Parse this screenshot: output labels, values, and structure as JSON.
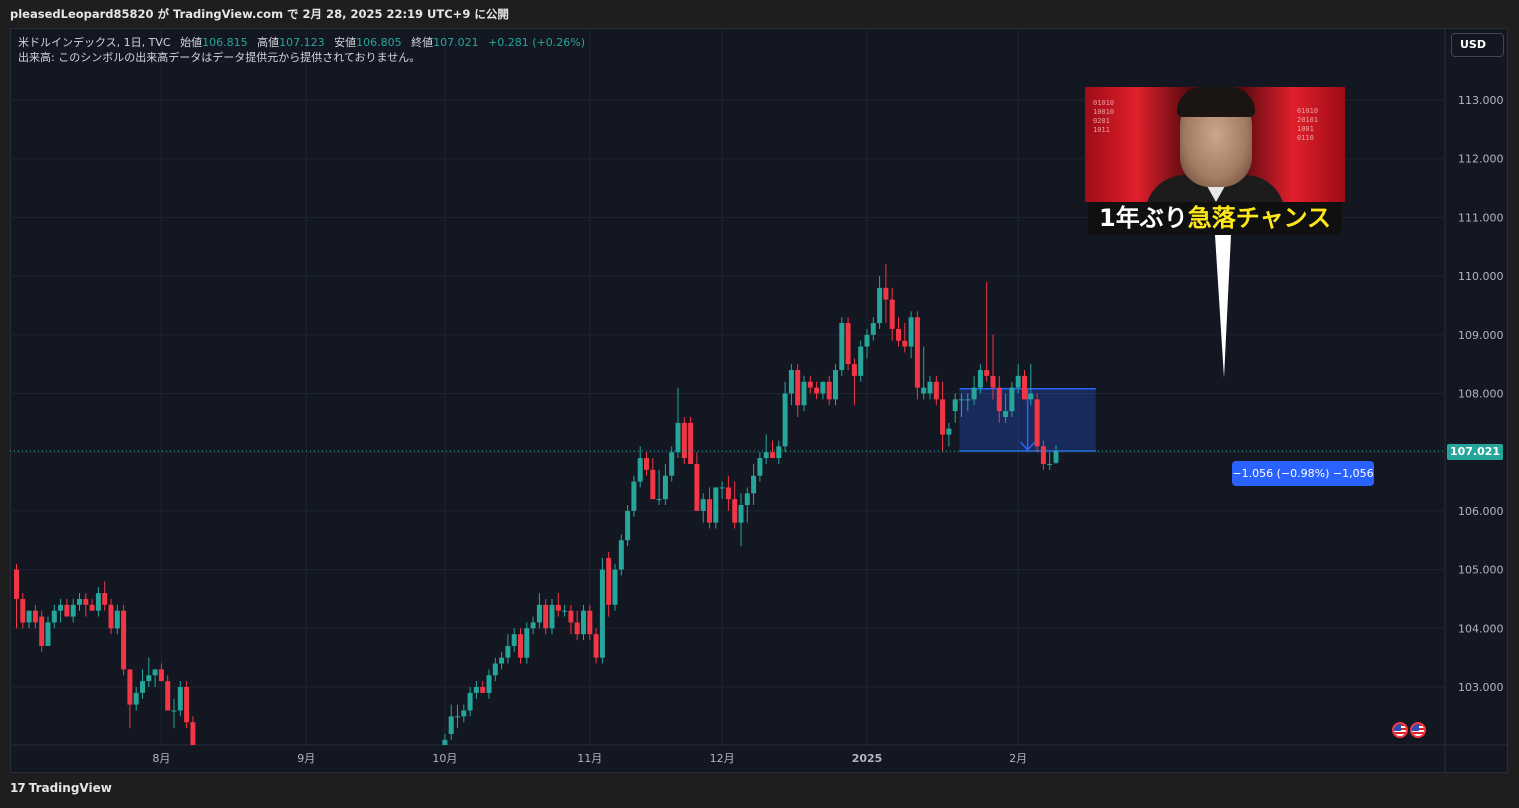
{
  "attribution": "pleasedLeopard85820 が TradingView.com で 2月 28, 2025 22:19 UTC+9 に公開",
  "legend": {
    "symbol": "米ドルインデックス, 1日, TVC",
    "open_label": "始値",
    "open": "106.815",
    "high_label": "高値",
    "high": "107.123",
    "low_label": "安値",
    "low": "106.805",
    "close_label": "終値",
    "close": "107.021",
    "change": "+0.281 (+0.26%)",
    "volume_note": "出来高: このシンボルの出来高データはデータ提供元から提供されておりません。"
  },
  "currency_button": "USD",
  "last_price_tag": "107.021",
  "measure_label": "−1.056 (−0.98%) −1,056",
  "banner": {
    "caption_white": "1年ぶり",
    "caption_yellow": "急落チャンス"
  },
  "footer": {
    "logo_glyph": "17",
    "brand": "TradingView"
  },
  "colors": {
    "background": "#131722",
    "up": "#26a69a",
    "down": "#f23645",
    "measure": "#2962ff",
    "grid": "#1f2433"
  },
  "chart_data": {
    "type": "candlestick",
    "title": "米ドルインデックス, 1日, TVC",
    "xlabel": "",
    "ylabel": "",
    "ylim": [
      102.0,
      114.0
    ],
    "y_ticks": [
      "103.000",
      "104.000",
      "105.000",
      "106.000",
      "107.000",
      "108.000",
      "109.000",
      "110.000",
      "111.000",
      "112.000",
      "113.000"
    ],
    "x_ticks": [
      {
        "label": "8月",
        "index": 23
      },
      {
        "label": "9月",
        "index": 46
      },
      {
        "label": "10月",
        "index": 68
      },
      {
        "label": "11月",
        "index": 91
      },
      {
        "label": "12月",
        "index": 112
      },
      {
        "label": "2025",
        "index": 135
      },
      {
        "label": "2月",
        "index": 159
      }
    ],
    "grid": true,
    "last_price": 107.021,
    "measure": {
      "from_index": 150,
      "to_index": 171,
      "high": 108.08,
      "low": 107.02
    },
    "candles": [
      [
        0,
        105.0,
        105.1,
        104.0,
        104.5
      ],
      [
        1,
        104.5,
        104.6,
        104.0,
        104.1
      ],
      [
        2,
        104.1,
        104.3,
        104.0,
        104.3
      ],
      [
        3,
        104.3,
        104.4,
        104.0,
        104.1
      ],
      [
        4,
        104.2,
        104.3,
        103.6,
        103.7
      ],
      [
        5,
        103.7,
        104.2,
        103.7,
        104.1
      ],
      [
        6,
        104.1,
        104.4,
        104.0,
        104.3
      ],
      [
        7,
        104.3,
        104.5,
        104.1,
        104.4
      ],
      [
        8,
        104.4,
        104.5,
        104.2,
        104.2
      ],
      [
        9,
        104.2,
        104.5,
        104.1,
        104.4
      ],
      [
        10,
        104.4,
        104.6,
        104.3,
        104.5
      ],
      [
        11,
        104.5,
        104.6,
        104.2,
        104.4
      ],
      [
        12,
        104.4,
        104.5,
        104.3,
        104.3
      ],
      [
        13,
        104.3,
        104.7,
        104.2,
        104.6
      ],
      [
        14,
        104.6,
        104.8,
        104.3,
        104.4
      ],
      [
        15,
        104.4,
        104.5,
        103.9,
        104.0
      ],
      [
        16,
        104.0,
        104.4,
        103.9,
        104.3
      ],
      [
        17,
        104.3,
        104.4,
        103.2,
        103.3
      ],
      [
        18,
        103.3,
        103.3,
        102.3,
        102.7
      ],
      [
        19,
        102.7,
        103.0,
        102.6,
        102.9
      ],
      [
        20,
        102.9,
        103.3,
        102.8,
        103.1
      ],
      [
        21,
        103.1,
        103.5,
        103.0,
        103.2
      ],
      [
        22,
        103.2,
        103.3,
        103.0,
        103.3
      ],
      [
        23,
        103.3,
        103.4,
        103.1,
        103.1
      ],
      [
        24,
        103.1,
        103.2,
        102.6,
        102.6
      ],
      [
        25,
        102.6,
        102.8,
        102.3,
        102.6
      ],
      [
        26,
        102.6,
        103.1,
        102.5,
        103.0
      ],
      [
        27,
        103.0,
        103.1,
        102.3,
        102.4
      ],
      [
        28,
        102.4,
        102.5,
        101.9,
        102.0
      ],
      [
        68,
        101.8,
        102.2,
        101.7,
        102.1
      ],
      [
        69,
        102.2,
        102.7,
        102.1,
        102.5
      ],
      [
        70,
        102.5,
        102.7,
        102.3,
        102.5
      ],
      [
        71,
        102.5,
        102.7,
        102.4,
        102.6
      ],
      [
        72,
        102.6,
        103.0,
        102.5,
        102.9
      ],
      [
        73,
        102.9,
        103.1,
        102.8,
        103.0
      ],
      [
        74,
        103.0,
        103.1,
        102.9,
        102.9
      ],
      [
        75,
        102.9,
        103.3,
        102.8,
        103.2
      ],
      [
        76,
        103.2,
        103.5,
        103.1,
        103.4
      ],
      [
        77,
        103.4,
        103.6,
        103.3,
        103.5
      ],
      [
        78,
        103.5,
        103.9,
        103.4,
        103.7
      ],
      [
        79,
        103.7,
        104.0,
        103.6,
        103.9
      ],
      [
        80,
        103.9,
        104.0,
        103.4,
        103.5
      ],
      [
        81,
        103.5,
        104.1,
        103.4,
        104.0
      ],
      [
        82,
        104.0,
        104.2,
        103.9,
        104.1
      ],
      [
        83,
        104.1,
        104.6,
        104.0,
        104.4
      ],
      [
        84,
        104.4,
        104.5,
        103.9,
        104.0
      ],
      [
        85,
        104.0,
        104.5,
        103.9,
        104.4
      ],
      [
        86,
        104.4,
        104.6,
        104.2,
        104.3
      ],
      [
        87,
        104.3,
        104.4,
        104.2,
        104.3
      ],
      [
        88,
        104.3,
        104.4,
        103.9,
        104.1
      ],
      [
        89,
        104.1,
        104.3,
        103.8,
        103.9
      ],
      [
        90,
        103.9,
        104.4,
        103.8,
        104.3
      ],
      [
        91,
        104.3,
        104.4,
        103.8,
        103.9
      ],
      [
        92,
        103.9,
        104.0,
        103.4,
        103.5
      ],
      [
        93,
        103.5,
        105.2,
        103.4,
        105.0
      ],
      [
        94,
        105.2,
        105.3,
        104.2,
        104.4
      ],
      [
        95,
        104.4,
        105.1,
        104.3,
        105.0
      ],
      [
        96,
        105.0,
        105.6,
        104.9,
        105.5
      ],
      [
        97,
        105.5,
        106.1,
        105.4,
        106.0
      ],
      [
        98,
        106.0,
        106.6,
        105.9,
        106.5
      ],
      [
        99,
        106.5,
        107.1,
        106.4,
        106.9
      ],
      [
        100,
        106.9,
        107.0,
        106.6,
        106.7
      ],
      [
        101,
        106.7,
        106.9,
        106.2,
        106.2
      ],
      [
        102,
        106.2,
        106.7,
        106.1,
        106.2
      ],
      [
        103,
        106.2,
        106.8,
        106.1,
        106.6
      ],
      [
        104,
        106.6,
        107.1,
        106.5,
        107.0
      ],
      [
        105,
        107.0,
        108.1,
        106.9,
        107.5
      ],
      [
        106,
        107.5,
        107.6,
        106.8,
        106.9
      ],
      [
        107,
        107.5,
        107.6,
        106.8,
        106.8
      ],
      [
        108,
        106.8,
        107.0,
        106.0,
        106.0
      ],
      [
        109,
        106.0,
        106.3,
        105.8,
        106.2
      ],
      [
        110,
        106.2,
        106.4,
        105.7,
        105.8
      ],
      [
        111,
        105.8,
        106.4,
        105.7,
        106.4
      ],
      [
        112,
        106.4,
        106.5,
        106.2,
        106.4
      ],
      [
        113,
        106.4,
        106.6,
        106.0,
        106.2
      ],
      [
        114,
        106.2,
        106.5,
        105.7,
        105.8
      ],
      [
        115,
        105.8,
        106.3,
        105.4,
        106.1
      ],
      [
        116,
        106.1,
        106.4,
        105.8,
        106.3
      ],
      [
        117,
        106.3,
        106.8,
        106.1,
        106.6
      ],
      [
        118,
        106.6,
        107.0,
        106.5,
        106.9
      ],
      [
        119,
        106.9,
        107.3,
        106.8,
        107.0
      ],
      [
        120,
        107.0,
        107.2,
        106.9,
        106.9
      ],
      [
        121,
        106.9,
        107.2,
        106.8,
        107.1
      ],
      [
        122,
        107.1,
        108.2,
        107.0,
        108.0
      ],
      [
        123,
        108.0,
        108.5,
        107.8,
        108.4
      ],
      [
        124,
        108.4,
        108.5,
        107.6,
        107.8
      ],
      [
        125,
        107.8,
        108.3,
        107.7,
        108.2
      ],
      [
        126,
        108.2,
        108.3,
        108.0,
        108.1
      ],
      [
        127,
        108.1,
        108.2,
        107.9,
        108.0
      ],
      [
        128,
        108.0,
        108.2,
        107.9,
        108.2
      ],
      [
        129,
        108.2,
        108.3,
        107.8,
        107.9
      ],
      [
        130,
        107.9,
        108.5,
        107.8,
        108.4
      ],
      [
        131,
        108.4,
        109.3,
        108.3,
        109.2
      ],
      [
        132,
        109.2,
        109.3,
        108.4,
        108.5
      ],
      [
        133,
        108.5,
        108.6,
        107.8,
        108.3
      ],
      [
        134,
        108.3,
        108.9,
        108.2,
        108.8
      ],
      [
        135,
        108.8,
        109.1,
        108.6,
        109.0
      ],
      [
        136,
        109.0,
        109.3,
        108.9,
        109.2
      ],
      [
        137,
        109.2,
        110.0,
        109.1,
        109.8
      ],
      [
        138,
        109.8,
        110.2,
        109.2,
        109.6
      ],
      [
        139,
        109.6,
        109.8,
        108.9,
        109.1
      ],
      [
        140,
        109.1,
        109.3,
        108.8,
        108.9
      ],
      [
        141,
        108.9,
        109.2,
        108.7,
        108.8
      ],
      [
        142,
        108.8,
        109.4,
        108.6,
        109.3
      ],
      [
        143,
        109.3,
        109.4,
        107.9,
        108.1
      ],
      [
        144,
        108.0,
        108.8,
        107.9,
        108.1
      ],
      [
        145,
        108.0,
        108.3,
        107.9,
        108.2
      ],
      [
        146,
        108.2,
        108.3,
        107.8,
        107.9
      ],
      [
        147,
        107.9,
        108.2,
        107.0,
        107.3
      ],
      [
        148,
        107.3,
        107.5,
        107.1,
        107.4
      ],
      [
        149,
        107.7,
        108.0,
        107.5,
        107.9
      ],
      [
        150,
        107.9,
        108.0,
        107.6,
        107.9
      ],
      [
        151,
        107.9,
        108.0,
        107.7,
        107.9
      ],
      [
        152,
        107.9,
        108.3,
        107.8,
        108.1
      ],
      [
        153,
        108.1,
        108.5,
        108.0,
        108.4
      ],
      [
        154,
        108.4,
        109.9,
        108.2,
        108.3
      ],
      [
        155,
        108.3,
        109.0,
        107.9,
        108.1
      ],
      [
        156,
        108.1,
        108.3,
        107.5,
        107.7
      ],
      [
        157,
        107.6,
        108.0,
        107.5,
        107.7
      ],
      [
        158,
        107.7,
        108.2,
        107.6,
        108.1
      ],
      [
        159,
        108.1,
        108.5,
        108.0,
        108.3
      ],
      [
        160,
        108.3,
        108.4,
        107.9,
        107.9
      ],
      [
        161,
        107.9,
        108.5,
        107.8,
        108.0
      ],
      [
        162,
        107.9,
        108.0,
        107.0,
        107.1
      ],
      [
        163,
        107.1,
        107.2,
        106.7,
        106.8
      ],
      [
        164,
        106.8,
        107.0,
        106.7,
        106.8
      ],
      [
        165,
        106.82,
        107.12,
        106.8,
        107.02
      ]
    ]
  }
}
